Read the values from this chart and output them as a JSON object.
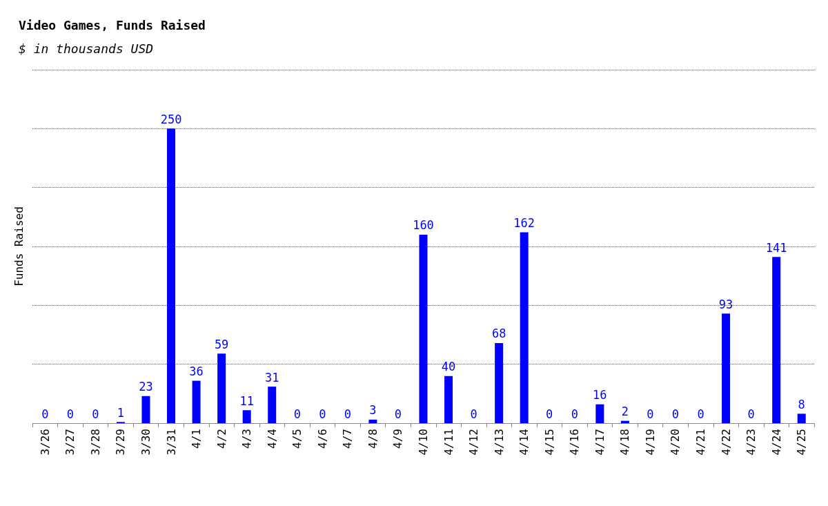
{
  "chart_data": {
    "type": "bar",
    "title": "Video Games, Funds Raised",
    "subtitle": "$ in thousands USD",
    "ylabel": "Funds Raised",
    "categories": [
      "3/26",
      "3/27",
      "3/28",
      "3/29",
      "3/30",
      "3/31",
      "4/1",
      "4/2",
      "4/3",
      "4/4",
      "4/5",
      "4/6",
      "4/7",
      "4/8",
      "4/9",
      "4/10",
      "4/11",
      "4/12",
      "4/13",
      "4/14",
      "4/15",
      "4/16",
      "4/17",
      "4/18",
      "4/19",
      "4/20",
      "4/21",
      "4/22",
      "4/23",
      "4/24",
      "4/25"
    ],
    "values": [
      0,
      0,
      0,
      1,
      23,
      250,
      36,
      59,
      11,
      31,
      0,
      0,
      0,
      3,
      0,
      160,
      40,
      0,
      68,
      162,
      0,
      0,
      16,
      2,
      0,
      0,
      0,
      93,
      0,
      141,
      8
    ],
    "color": "#0000ff",
    "data_labels": true,
    "ylim": [
      0,
      300
    ],
    "yticks": [
      {
        "value": 0,
        "label": null
      },
      {
        "value": 50,
        "label": null
      },
      {
        "value": 100,
        "label": null
      },
      {
        "value": 150,
        "label": null
      },
      {
        "value": 200,
        "label": null
      },
      {
        "value": 250,
        "label": null
      },
      {
        "value": 300,
        "label": null
      }
    ],
    "grid": "y",
    "tick_labels": "x"
  }
}
